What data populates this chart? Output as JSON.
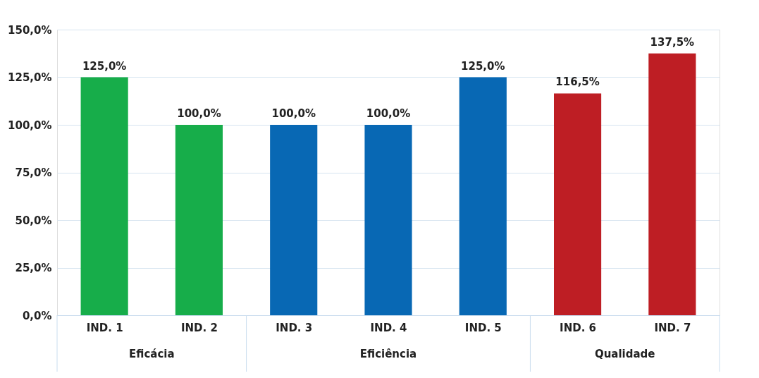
{
  "chart_data": {
    "type": "bar",
    "categories": [
      "IND. 1",
      "IND. 2",
      "IND. 3",
      "IND. 4",
      "IND. 5",
      "IND. 6",
      "IND. 7"
    ],
    "values": [
      125,
      100,
      100,
      100,
      125,
      116.5,
      137.5
    ],
    "colors": [
      "#17ad4a",
      "#17ad4a",
      "#0868b4",
      "#0868b4",
      "#0868b4",
      "#be1e24",
      "#be1e24"
    ],
    "value_labels": [
      "125,0%",
      "100,0%",
      "100,0%",
      "100,0%",
      "125,0%",
      "116,5%",
      "137,5%"
    ],
    "ylim": [
      0,
      150
    ],
    "yticks": [
      {
        "value": 0,
        "label": "0,0%"
      },
      {
        "value": 25,
        "label": "25,0%"
      },
      {
        "value": 50,
        "label": "50,0%"
      },
      {
        "value": 75,
        "label": "75,0%"
      },
      {
        "value": 100,
        "label": "100,0%"
      },
      {
        "value": 125,
        "label": "125,0%"
      },
      {
        "value": 150,
        "label": "150,0%"
      }
    ],
    "annotations": [
      "Eficácia",
      "Eficiência",
      "Qualidade"
    ],
    "grid": "y"
  }
}
